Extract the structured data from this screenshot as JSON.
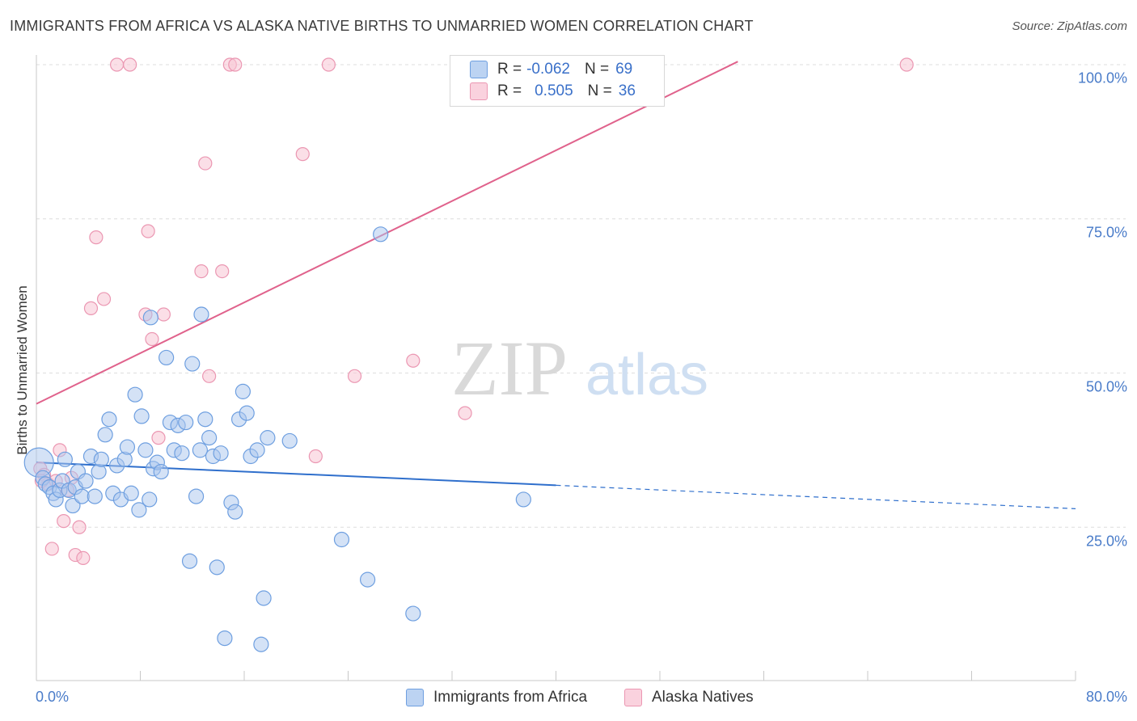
{
  "title": "IMMIGRANTS FROM AFRICA VS ALASKA NATIVE BIRTHS TO UNMARRIED WOMEN CORRELATION CHART",
  "source": "Source: ZipAtlas.com",
  "watermark": {
    "zip": "ZIP",
    "atlas": "atlas"
  },
  "legend": {
    "r_label": "R =",
    "n_label": "N =",
    "series1": {
      "r": "-0.062",
      "n": "69"
    },
    "series2": {
      "r": "0.505",
      "n": "36"
    }
  },
  "colors": {
    "blue_fill": "#a9c6ee",
    "blue_stroke": "#6e9fe0",
    "blue_line": "#2f6fcc",
    "pink_fill": "#f7c4d3",
    "pink_stroke": "#eb97b2",
    "pink_line": "#e0628c",
    "grid": "#dedede",
    "tick_text": "#4a7cc9"
  },
  "chart_data": {
    "type": "scatter",
    "title": "IMMIGRANTS FROM AFRICA VS ALASKA NATIVE BIRTHS TO UNMARRIED WOMEN CORRELATION CHART",
    "xlabel": "",
    "ylabel": "Births to Unmarried Women",
    "xlim": [
      0,
      80
    ],
    "ylim": [
      0,
      102
    ],
    "x_tick_labels": [
      "0.0%",
      "80.0%"
    ],
    "y_tick_labels": [
      "100.0%",
      "75.0%",
      "50.0%",
      "25.0%"
    ],
    "y_ticks": [
      100,
      75,
      50,
      25
    ],
    "grid": true,
    "legend_position": "top-center",
    "series": [
      {
        "name": "Immigrants from Africa",
        "color": "#a9c6ee",
        "r": -0.062,
        "n": 69,
        "trend": {
          "x0": 0,
          "y0": 35.5,
          "x1": 40,
          "y1": 31.8,
          "dashed_to_x": 80,
          "dashed_to_y": 28.0
        },
        "points": [
          [
            0.2,
            35.5
          ],
          [
            0.5,
            33.0
          ],
          [
            0.7,
            32.0
          ],
          [
            1.0,
            31.5
          ],
          [
            1.3,
            30.5
          ],
          [
            1.5,
            29.5
          ],
          [
            1.8,
            31.0
          ],
          [
            2.0,
            32.5
          ],
          [
            2.2,
            36.0
          ],
          [
            2.5,
            31.0
          ],
          [
            2.8,
            28.5
          ],
          [
            3.0,
            31.5
          ],
          [
            3.2,
            34.0
          ],
          [
            3.5,
            30.0
          ],
          [
            3.8,
            32.5
          ],
          [
            4.2,
            36.5
          ],
          [
            4.5,
            30.0
          ],
          [
            4.8,
            34.0
          ],
          [
            5.0,
            36.0
          ],
          [
            5.3,
            40.0
          ],
          [
            5.6,
            42.5
          ],
          [
            5.9,
            30.5
          ],
          [
            6.2,
            35.0
          ],
          [
            6.5,
            29.5
          ],
          [
            6.8,
            36.0
          ],
          [
            7.0,
            38.0
          ],
          [
            7.3,
            30.5
          ],
          [
            7.6,
            46.5
          ],
          [
            7.9,
            27.8
          ],
          [
            8.1,
            43.0
          ],
          [
            8.4,
            37.5
          ],
          [
            8.7,
            29.5
          ],
          [
            9.0,
            34.5
          ],
          [
            9.3,
            35.5
          ],
          [
            9.6,
            34.0
          ],
          [
            10.0,
            52.5
          ],
          [
            10.3,
            42.0
          ],
          [
            10.6,
            37.5
          ],
          [
            10.9,
            41.5
          ],
          [
            11.2,
            37.0
          ],
          [
            11.5,
            42.0
          ],
          [
            11.8,
            19.5
          ],
          [
            12.0,
            51.5
          ],
          [
            12.3,
            30.0
          ],
          [
            12.6,
            37.5
          ],
          [
            13.0,
            42.5
          ],
          [
            13.3,
            39.5
          ],
          [
            13.6,
            36.5
          ],
          [
            13.9,
            18.5
          ],
          [
            14.2,
            37.0
          ],
          [
            14.5,
            7.0
          ],
          [
            15.0,
            29.0
          ],
          [
            15.3,
            27.5
          ],
          [
            15.6,
            42.5
          ],
          [
            15.9,
            47.0
          ],
          [
            16.2,
            43.5
          ],
          [
            16.5,
            36.5
          ],
          [
            17.0,
            37.5
          ],
          [
            17.5,
            13.5
          ],
          [
            17.8,
            39.5
          ],
          [
            17.3,
            6.0
          ],
          [
            19.5,
            39.0
          ],
          [
            23.5,
            23.0
          ],
          [
            25.5,
            16.5
          ],
          [
            26.5,
            72.5
          ],
          [
            29.0,
            11.0
          ],
          [
            37.5,
            29.5
          ],
          [
            8.8,
            59.0
          ],
          [
            12.7,
            59.5
          ]
        ]
      },
      {
        "name": "Alaska Natives",
        "color": "#f7c4d3",
        "r": 0.505,
        "n": 36,
        "trend": {
          "x0": 0,
          "y0": 45.0,
          "x1": 54,
          "y1": 100.5
        },
        "points": [
          [
            0.3,
            34.5
          ],
          [
            0.6,
            33.5
          ],
          [
            0.9,
            32.0
          ],
          [
            1.2,
            21.5
          ],
          [
            1.5,
            32.5
          ],
          [
            1.8,
            37.5
          ],
          [
            2.1,
            26.0
          ],
          [
            2.4,
            31.0
          ],
          [
            2.7,
            33.0
          ],
          [
            3.0,
            20.5
          ],
          [
            3.3,
            25.0
          ],
          [
            3.6,
            20.0
          ],
          [
            4.2,
            60.5
          ],
          [
            4.6,
            72.0
          ],
          [
            5.2,
            62.0
          ],
          [
            6.2,
            100.0
          ],
          [
            7.2,
            100.0
          ],
          [
            8.4,
            59.5
          ],
          [
            8.6,
            73.0
          ],
          [
            8.9,
            55.5
          ],
          [
            9.4,
            39.5
          ],
          [
            9.8,
            59.5
          ],
          [
            12.7,
            66.5
          ],
          [
            13.0,
            84.0
          ],
          [
            13.3,
            49.5
          ],
          [
            14.3,
            66.5
          ],
          [
            14.9,
            100.0
          ],
          [
            15.3,
            100.0
          ],
          [
            20.5,
            85.5
          ],
          [
            21.5,
            36.5
          ],
          [
            22.5,
            100.0
          ],
          [
            24.5,
            49.5
          ],
          [
            29.0,
            52.0
          ],
          [
            33.0,
            43.5
          ],
          [
            67.0,
            100.0
          ],
          [
            0.4,
            32.5
          ]
        ]
      }
    ]
  }
}
